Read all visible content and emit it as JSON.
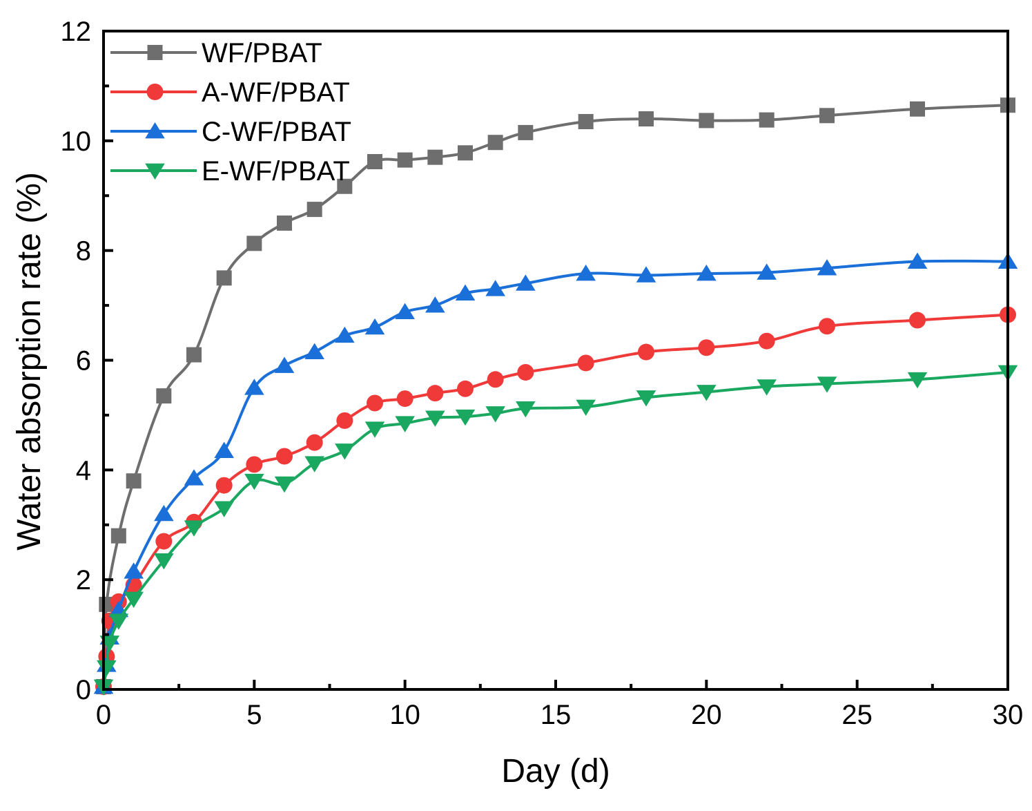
{
  "chart_data": {
    "type": "line",
    "title": "",
    "xlabel": "Day (d)",
    "ylabel": "Water absorption rate (%)",
    "xlim": [
      0,
      30
    ],
    "ylim": [
      0,
      12
    ],
    "xticks": [
      0,
      5,
      10,
      15,
      20,
      25,
      30
    ],
    "yticks": [
      0,
      2,
      4,
      6,
      8,
      10,
      12
    ],
    "legend_position": "top-left",
    "grid": false,
    "series": [
      {
        "name": "WF/PBAT",
        "color": "#6e6e6e",
        "marker": "square",
        "x": [
          0,
          0.1,
          0.5,
          1,
          2,
          3,
          4,
          5,
          6,
          7,
          8,
          9,
          10,
          11,
          12,
          13,
          14,
          16,
          18,
          20,
          22,
          24,
          27,
          30
        ],
        "y": [
          0.05,
          1.55,
          2.8,
          3.8,
          5.35,
          6.1,
          7.5,
          8.13,
          8.5,
          8.75,
          9.17,
          9.62,
          9.65,
          9.7,
          9.78,
          9.97,
          10.15,
          10.35,
          10.4,
          10.37,
          10.38,
          10.46,
          10.58,
          10.65
        ]
      },
      {
        "name": "A-WF/PBAT",
        "color": "#f03a3a",
        "marker": "circle",
        "x": [
          0,
          0.1,
          0.2,
          0.5,
          1,
          2,
          3,
          4,
          5,
          6,
          7,
          8,
          9,
          10,
          11,
          12,
          13,
          14,
          16,
          18,
          20,
          22,
          24,
          27,
          30
        ],
        "y": [
          0.05,
          0.6,
          1.25,
          1.6,
          1.9,
          2.7,
          3.05,
          3.72,
          4.1,
          4.25,
          4.5,
          4.9,
          5.22,
          5.3,
          5.4,
          5.48,
          5.65,
          5.78,
          5.95,
          6.15,
          6.23,
          6.35,
          6.62,
          6.73,
          6.83
        ]
      },
      {
        "name": "C-WF/PBAT",
        "color": "#1a6fd8",
        "marker": "triangle-up",
        "x": [
          0,
          0.1,
          0.2,
          0.5,
          1,
          2,
          3,
          4,
          5,
          6,
          7,
          8,
          9,
          10,
          11,
          12,
          13,
          14,
          16,
          18,
          20,
          22,
          24,
          27,
          30
        ],
        "y": [
          0.05,
          0.45,
          0.95,
          1.45,
          2.15,
          3.2,
          3.85,
          4.35,
          5.5,
          5.9,
          6.15,
          6.45,
          6.6,
          6.88,
          7.0,
          7.22,
          7.3,
          7.4,
          7.58,
          7.55,
          7.58,
          7.6,
          7.68,
          7.8,
          7.8
        ]
      },
      {
        "name": "E-WF/PBAT",
        "color": "#1aa760",
        "marker": "triangle-down",
        "x": [
          0,
          0.1,
          0.2,
          0.5,
          1,
          2,
          3,
          4,
          5,
          6,
          7,
          8,
          9,
          10,
          11,
          12,
          13,
          14,
          16,
          18,
          20,
          22,
          24,
          27,
          30
        ],
        "y": [
          0.05,
          0.4,
          0.85,
          1.25,
          1.65,
          2.35,
          2.95,
          3.3,
          3.8,
          3.75,
          4.12,
          4.35,
          4.75,
          4.85,
          4.95,
          4.97,
          5.03,
          5.12,
          5.15,
          5.32,
          5.42,
          5.52,
          5.57,
          5.65,
          5.78
        ]
      }
    ]
  }
}
